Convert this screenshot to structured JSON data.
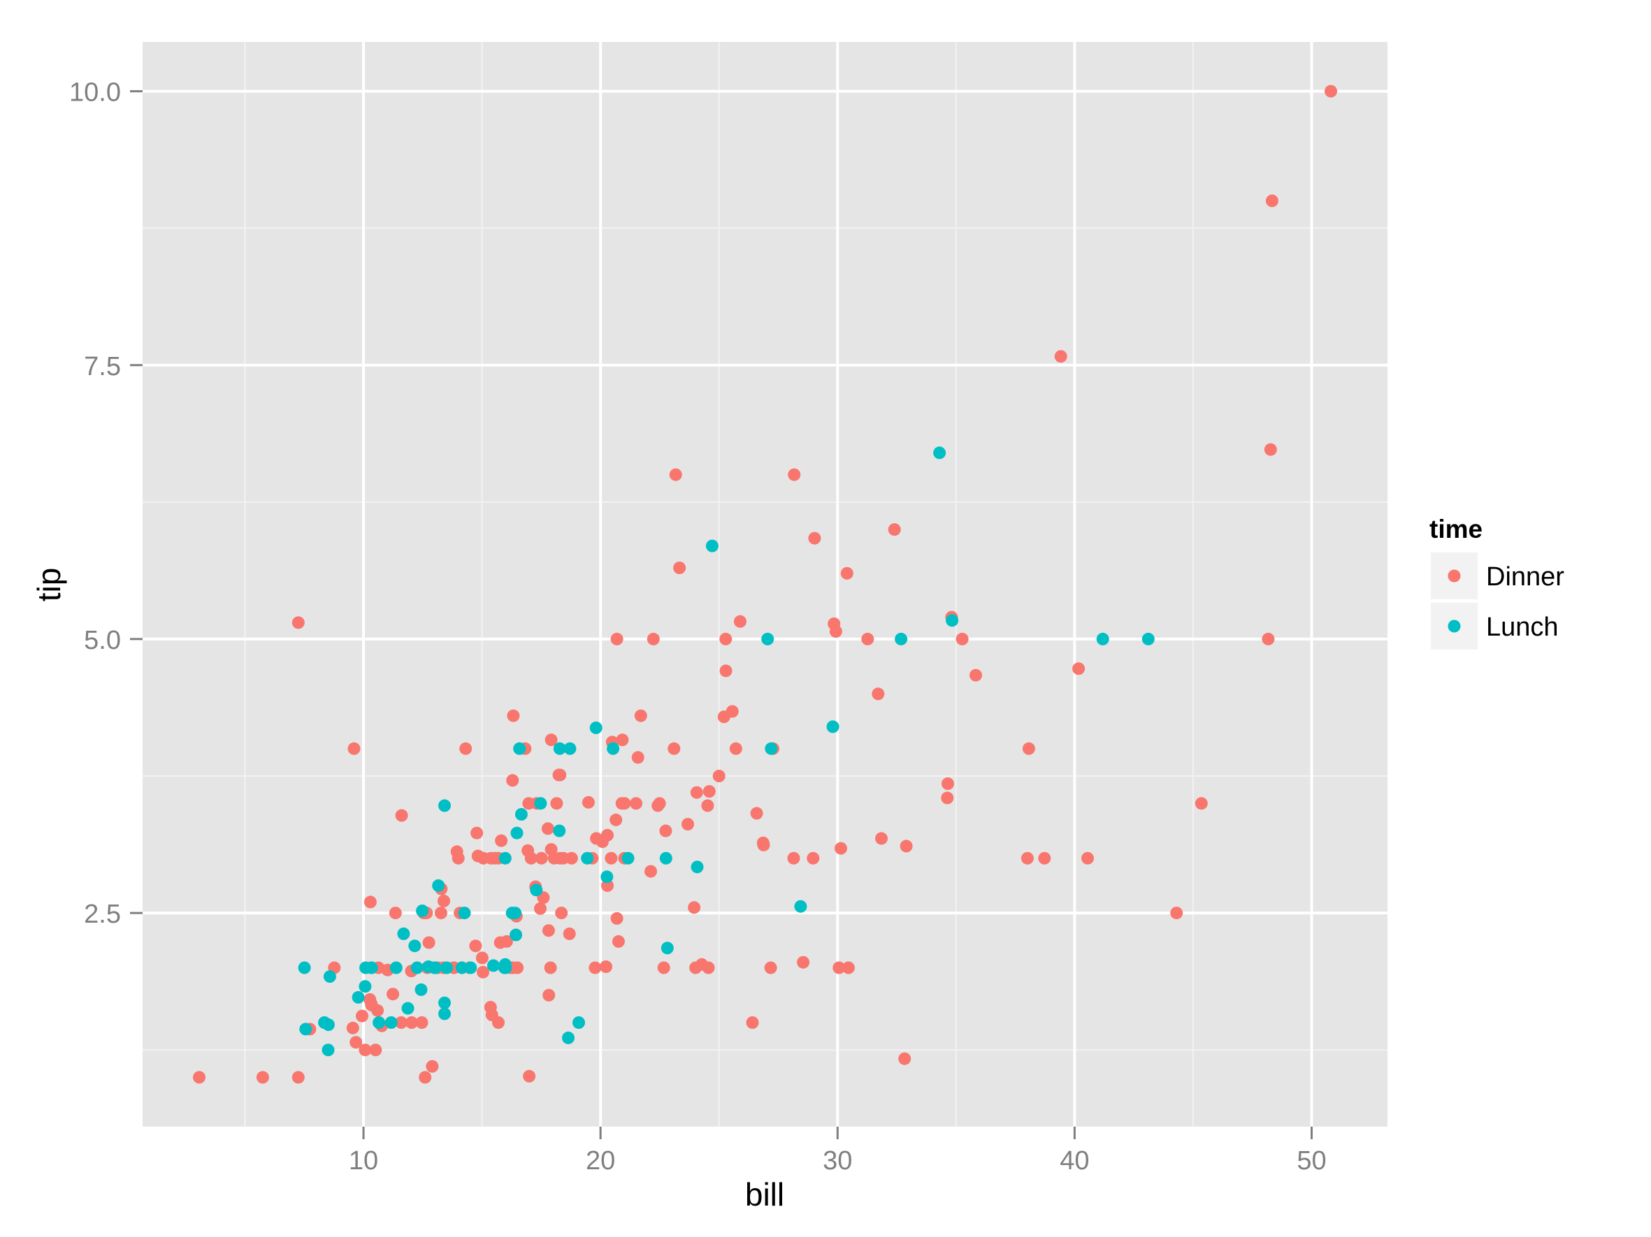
{
  "chart_data": {
    "type": "scatter",
    "title": "",
    "xlabel": "bill",
    "ylabel": "tip",
    "xlim": [
      0.68,
      53.2
    ],
    "ylim": [
      0.55,
      10.45
    ],
    "grid": true,
    "x_ticks": [
      10,
      20,
      30,
      40,
      50
    ],
    "x_tick_labels": [
      "10",
      "20",
      "30",
      "40",
      "50"
    ],
    "x_minor_ticks": [
      5,
      15,
      25,
      35,
      45
    ],
    "y_ticks": [
      2.5,
      5.0,
      7.5,
      10.0
    ],
    "y_tick_labels": [
      "2.5",
      "5.0",
      "7.5",
      "10.0"
    ],
    "y_minor_ticks": [
      1.25,
      3.75,
      6.25,
      8.75
    ],
    "legend": {
      "title": "time",
      "position": "right",
      "entries": [
        {
          "label": "Dinner",
          "color": "#F8766D"
        },
        {
          "label": "Lunch",
          "color": "#00BFC4"
        }
      ]
    },
    "series": [
      {
        "name": "Dinner",
        "color": "#F8766D",
        "points": [
          [
            16.99,
            1.01
          ],
          [
            10.34,
            1.66
          ],
          [
            21.01,
            3.5
          ],
          [
            23.68,
            3.31
          ],
          [
            24.59,
            3.61
          ],
          [
            25.29,
            4.71
          ],
          [
            8.77,
            2.0
          ],
          [
            26.88,
            3.12
          ],
          [
            15.04,
            1.96
          ],
          [
            14.78,
            3.23
          ],
          [
            10.27,
            1.71
          ],
          [
            35.26,
            5.0
          ],
          [
            15.42,
            1.57
          ],
          [
            18.43,
            3.0
          ],
          [
            14.83,
            3.02
          ],
          [
            21.58,
            3.92
          ],
          [
            10.33,
            1.67
          ],
          [
            16.29,
            3.71
          ],
          [
            16.97,
            3.5
          ],
          [
            20.65,
            3.35
          ],
          [
            17.92,
            4.08
          ],
          [
            20.29,
            2.75
          ],
          [
            15.77,
            2.23
          ],
          [
            39.42,
            7.58
          ],
          [
            19.82,
            3.18
          ],
          [
            17.81,
            2.34
          ],
          [
            13.37,
            2.0
          ],
          [
            12.69,
            2.0
          ],
          [
            21.7,
            4.3
          ],
          [
            19.65,
            3.0
          ],
          [
            9.55,
            1.45
          ],
          [
            18.35,
            2.5
          ],
          [
            15.06,
            3.0
          ],
          [
            20.69,
            2.45
          ],
          [
            17.78,
            3.27
          ],
          [
            24.06,
            3.6
          ],
          [
            16.31,
            2.0
          ],
          [
            16.93,
            3.07
          ],
          [
            18.69,
            2.31
          ],
          [
            31.27,
            5.0
          ],
          [
            16.04,
            2.24
          ],
          [
            17.46,
            2.54
          ],
          [
            13.94,
            3.06
          ],
          [
            9.68,
            1.32
          ],
          [
            30.4,
            5.6
          ],
          [
            18.29,
            3.0
          ],
          [
            22.23,
            5.0
          ],
          [
            32.4,
            6.0
          ],
          [
            28.55,
            2.05
          ],
          [
            18.04,
            3.0
          ],
          [
            12.54,
            2.5
          ],
          [
            10.29,
            2.6
          ],
          [
            34.81,
            5.2
          ],
          [
            9.94,
            1.56
          ],
          [
            25.56,
            4.34
          ],
          [
            19.49,
            3.51
          ],
          [
            38.01,
            3.0
          ],
          [
            26.41,
            1.5
          ],
          [
            11.24,
            1.76
          ],
          [
            48.27,
            6.73
          ],
          [
            20.29,
            3.21
          ],
          [
            13.81,
            2.0
          ],
          [
            11.02,
            1.98
          ],
          [
            18.29,
            3.76
          ],
          [
            17.59,
            2.64
          ],
          [
            20.08,
            3.15
          ],
          [
            16.45,
            2.47
          ],
          [
            3.07,
            1.0
          ],
          [
            20.23,
            2.01
          ],
          [
            15.01,
            2.09
          ],
          [
            12.02,
            1.97
          ],
          [
            17.07,
            3.0
          ],
          [
            26.86,
            3.14
          ],
          [
            25.28,
            5.0
          ],
          [
            14.73,
            2.2
          ],
          [
            10.51,
            1.25
          ],
          [
            17.92,
            3.08
          ],
          [
            28.97,
            3.0
          ],
          [
            22.49,
            3.5
          ],
          [
            5.75,
            1.0
          ],
          [
            16.32,
            4.3
          ],
          [
            22.75,
            3.25
          ],
          [
            40.17,
            4.73
          ],
          [
            27.28,
            4.0
          ],
          [
            12.03,
            1.5
          ],
          [
            21.01,
            3.0
          ],
          [
            12.46,
            1.5
          ],
          [
            11.35,
            2.5
          ],
          [
            15.38,
            3.0
          ],
          [
            44.3,
            2.5
          ],
          [
            22.42,
            3.48
          ],
          [
            20.92,
            4.08
          ],
          [
            15.36,
            1.64
          ],
          [
            20.49,
            4.06
          ],
          [
            25.21,
            4.29
          ],
          [
            18.24,
            3.76
          ],
          [
            14.31,
            4.0
          ],
          [
            14.0,
            3.0
          ],
          [
            7.25,
            1.0
          ],
          [
            38.07,
            4.0
          ],
          [
            23.95,
            2.55
          ],
          [
            25.71,
            4.0
          ],
          [
            17.31,
            3.5
          ],
          [
            29.93,
            5.07
          ],
          [
            14.07,
            2.5
          ],
          [
            13.13,
            2.0
          ],
          [
            17.26,
            2.74
          ],
          [
            24.55,
            2.0
          ],
          [
            19.77,
            2.0
          ],
          [
            29.85,
            5.14
          ],
          [
            48.17,
            5.0
          ],
          [
            25.0,
            3.75
          ],
          [
            13.39,
            2.61
          ],
          [
            16.49,
            2.0
          ],
          [
            21.5,
            3.5
          ],
          [
            12.66,
            2.5
          ],
          [
            16.21,
            2.0
          ],
          [
            13.81,
            2.0
          ],
          [
            17.51,
            3.0
          ],
          [
            24.52,
            3.48
          ],
          [
            20.76,
            2.24
          ],
          [
            31.71,
            4.5
          ],
          [
            10.59,
            1.61
          ],
          [
            10.63,
            2.0
          ],
          [
            50.81,
            10.0
          ],
          [
            15.81,
            3.16
          ],
          [
            7.25,
            5.15
          ],
          [
            31.85,
            3.18
          ],
          [
            16.82,
            4.0
          ],
          [
            32.9,
            3.11
          ],
          [
            17.89,
            2.0
          ],
          [
            14.48,
            2.0
          ],
          [
            9.6,
            4.0
          ],
          [
            34.63,
            3.55
          ],
          [
            34.65,
            3.68
          ],
          [
            23.33,
            5.65
          ],
          [
            45.35,
            3.5
          ],
          [
            23.17,
            6.5
          ],
          [
            40.55,
            3.0
          ],
          [
            20.69,
            5.0
          ],
          [
            20.9,
            3.5
          ],
          [
            30.46,
            2.0
          ],
          [
            18.15,
            3.5
          ],
          [
            23.1,
            4.0
          ],
          [
            15.69,
            1.5
          ],
          [
            26.59,
            3.41
          ],
          [
            38.73,
            3.0
          ],
          [
            24.27,
            2.03
          ],
          [
            12.76,
            2.23
          ],
          [
            30.06,
            2.0
          ],
          [
            25.89,
            5.16
          ],
          [
            48.33,
            9.0
          ],
          [
            13.27,
            2.5
          ],
          [
            28.17,
            6.5
          ],
          [
            12.9,
            1.1
          ],
          [
            28.15,
            3.0
          ],
          [
            11.59,
            1.5
          ],
          [
            7.74,
            1.44
          ],
          [
            30.14,
            3.09
          ],
          [
            20.45,
            3.0
          ],
          [
            13.28,
            2.72
          ],
          [
            22.12,
            2.88
          ],
          [
            24.01,
            2.0
          ],
          [
            15.69,
            3.0
          ],
          [
            11.61,
            3.39
          ],
          [
            10.77,
            1.47
          ],
          [
            15.53,
            3.0
          ],
          [
            10.07,
            1.25
          ],
          [
            12.6,
            1.0
          ],
          [
            32.83,
            1.17
          ],
          [
            35.83,
            4.67
          ],
          [
            29.03,
            5.92
          ],
          [
            27.18,
            2.0
          ],
          [
            22.67,
            2.0
          ],
          [
            17.82,
            1.75
          ],
          [
            18.78,
            3.0
          ]
        ]
      },
      {
        "name": "Lunch",
        "color": "#00BFC4",
        "points": [
          [
            27.2,
            4.0
          ],
          [
            22.76,
            3.0
          ],
          [
            17.29,
            2.71
          ],
          [
            19.44,
            3.0
          ],
          [
            16.66,
            3.4
          ],
          [
            10.07,
            1.83
          ],
          [
            32.68,
            5.0
          ],
          [
            15.98,
            2.03
          ],
          [
            34.83,
            5.17
          ],
          [
            13.03,
            2.0
          ],
          [
            18.28,
            4.0
          ],
          [
            24.71,
            5.85
          ],
          [
            21.16,
            3.0
          ],
          [
            10.65,
            1.5
          ],
          [
            12.43,
            1.8
          ],
          [
            24.08,
            2.92
          ],
          [
            11.69,
            2.31
          ],
          [
            13.42,
            1.68
          ],
          [
            14.26,
            2.5
          ],
          [
            15.95,
            2.0
          ],
          [
            12.48,
            2.52
          ],
          [
            29.8,
            4.2
          ],
          [
            8.52,
            1.48
          ],
          [
            14.52,
            2.0
          ],
          [
            11.38,
            2.0
          ],
          [
            22.82,
            2.18
          ],
          [
            19.08,
            1.5
          ],
          [
            20.27,
            2.83
          ],
          [
            11.17,
            1.5
          ],
          [
            12.26,
            2.0
          ],
          [
            18.26,
            3.25
          ],
          [
            8.51,
            1.25
          ],
          [
            10.33,
            2.0
          ],
          [
            14.15,
            2.0
          ],
          [
            16.0,
            2.0
          ],
          [
            13.16,
            2.75
          ],
          [
            17.47,
            3.5
          ],
          [
            34.3,
            6.7
          ],
          [
            41.19,
            5.0
          ],
          [
            27.05,
            5.0
          ],
          [
            16.43,
            2.3
          ],
          [
            8.35,
            1.5
          ],
          [
            18.64,
            1.36
          ],
          [
            11.87,
            1.63
          ],
          [
            9.78,
            1.73
          ],
          [
            7.51,
            2.0
          ],
          [
            19.81,
            4.19
          ],
          [
            28.44,
            2.56
          ],
          [
            15.48,
            2.02
          ],
          [
            16.58,
            4.0
          ],
          [
            7.56,
            1.44
          ],
          [
            10.34,
            2.0
          ],
          [
            43.11,
            5.0
          ],
          [
            13.0,
            2.0
          ],
          [
            13.51,
            2.0
          ],
          [
            18.71,
            4.0
          ],
          [
            12.74,
            2.01
          ],
          [
            13.0,
            2.0
          ],
          [
            16.4,
            2.5
          ],
          [
            20.53,
            4.0
          ],
          [
            16.47,
            3.23
          ],
          [
            12.16,
            2.2
          ],
          [
            13.42,
            3.48
          ],
          [
            8.58,
            1.92
          ],
          [
            15.98,
            3.0
          ],
          [
            13.42,
            1.58
          ],
          [
            16.27,
            2.5
          ],
          [
            10.09,
            2.0
          ]
        ]
      }
    ]
  },
  "colors": {
    "panel_background": "#E5E5E5",
    "major_grid": "#FFFFFF",
    "minor_grid": "#F2F2F2",
    "tick_text": "#7F7F7F",
    "legend_key_background": "#F2F2F2"
  }
}
